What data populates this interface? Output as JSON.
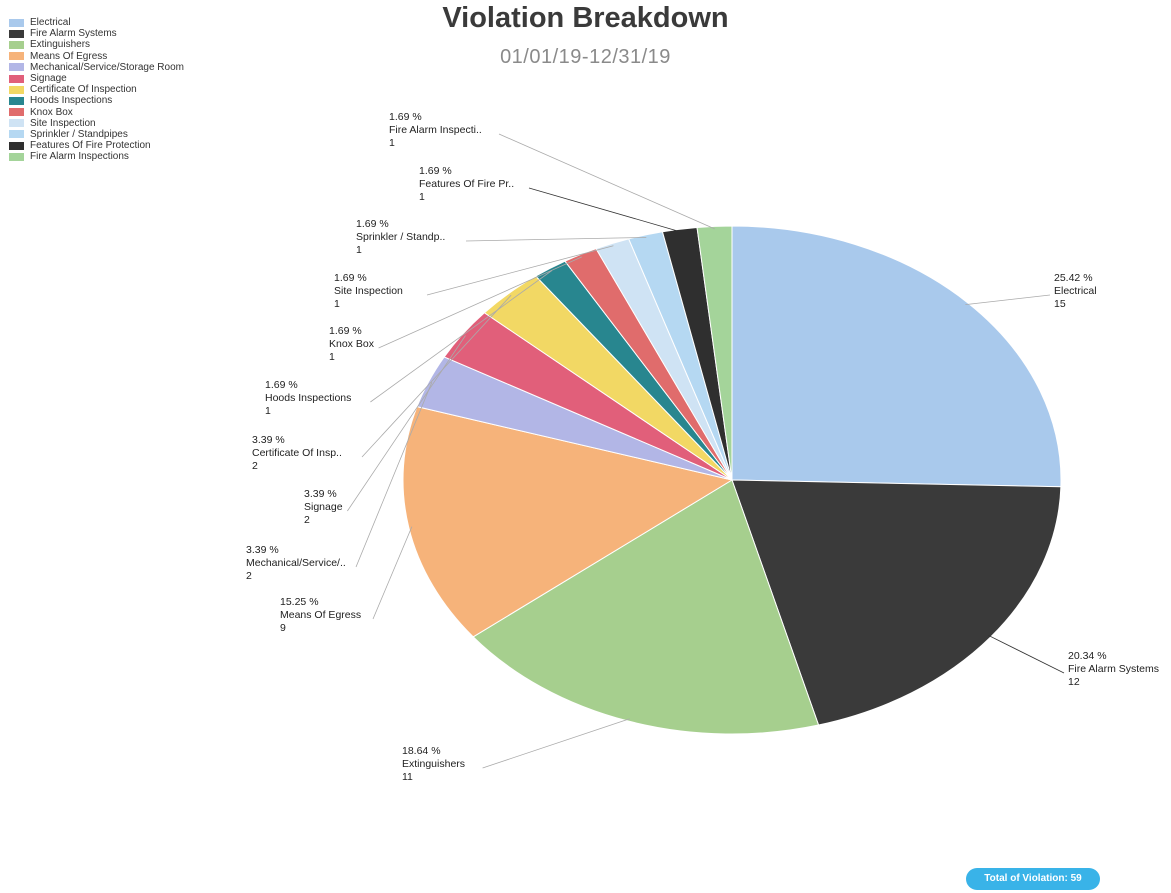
{
  "chart_data": {
    "type": "pie",
    "title": "Violation Breakdown",
    "subtitle": "01/01/19-12/31/19",
    "legend_position": "top-left",
    "slices": [
      {
        "name": "Electrical",
        "value": 15,
        "percent": "25.42 %",
        "label": "Electrical",
        "color": "#a9c9ec"
      },
      {
        "name": "Fire Alarm Systems",
        "value": 12,
        "percent": "20.34 %",
        "label": "Fire Alarm Systems",
        "color": "#3a3a3a"
      },
      {
        "name": "Extinguishers",
        "value": 11,
        "percent": "18.64 %",
        "label": "Extinguishers",
        "color": "#a6cf8e"
      },
      {
        "name": "Means Of Egress",
        "value": 9,
        "percent": "15.25 %",
        "label": "Means Of Egress",
        "color": "#f6b37a"
      },
      {
        "name": "Mechanical/Service/Storage Room",
        "value": 2,
        "percent": "3.39 %",
        "label": "Mechanical/Service/..",
        "color": "#b2b6e6"
      },
      {
        "name": "Signage",
        "value": 2,
        "percent": "3.39 %",
        "label": "Signage",
        "color": "#e15f7a"
      },
      {
        "name": "Certificate Of Inspection",
        "value": 2,
        "percent": "3.39 %",
        "label": "Certificate Of Insp..",
        "color": "#f2d864"
      },
      {
        "name": "Hoods Inspections",
        "value": 1,
        "percent": "1.69 %",
        "label": "Hoods Inspections",
        "color": "#28868f"
      },
      {
        "name": "Knox Box",
        "value": 1,
        "percent": "1.69 %",
        "label": "Knox Box",
        "color": "#e06c6c"
      },
      {
        "name": "Site Inspection",
        "value": 1,
        "percent": "1.69 %",
        "label": "Site Inspection",
        "color": "#cfe3f4"
      },
      {
        "name": "Sprinkler / Standpipes",
        "value": 1,
        "percent": "1.69 %",
        "label": "Sprinkler / Standp..",
        "color": "#b5d8f2"
      },
      {
        "name": "Features Of Fire Protection",
        "value": 1,
        "percent": "1.69 %",
        "label": "Features Of Fire Pr..",
        "color": "#2f2f2f"
      },
      {
        "name": "Fire Alarm Inspections",
        "value": 1,
        "percent": "1.69 %",
        "label": "Fire Alarm Inspecti..",
        "color": "#a4d49a"
      }
    ],
    "total_label": "Total of Violation: 59"
  }
}
